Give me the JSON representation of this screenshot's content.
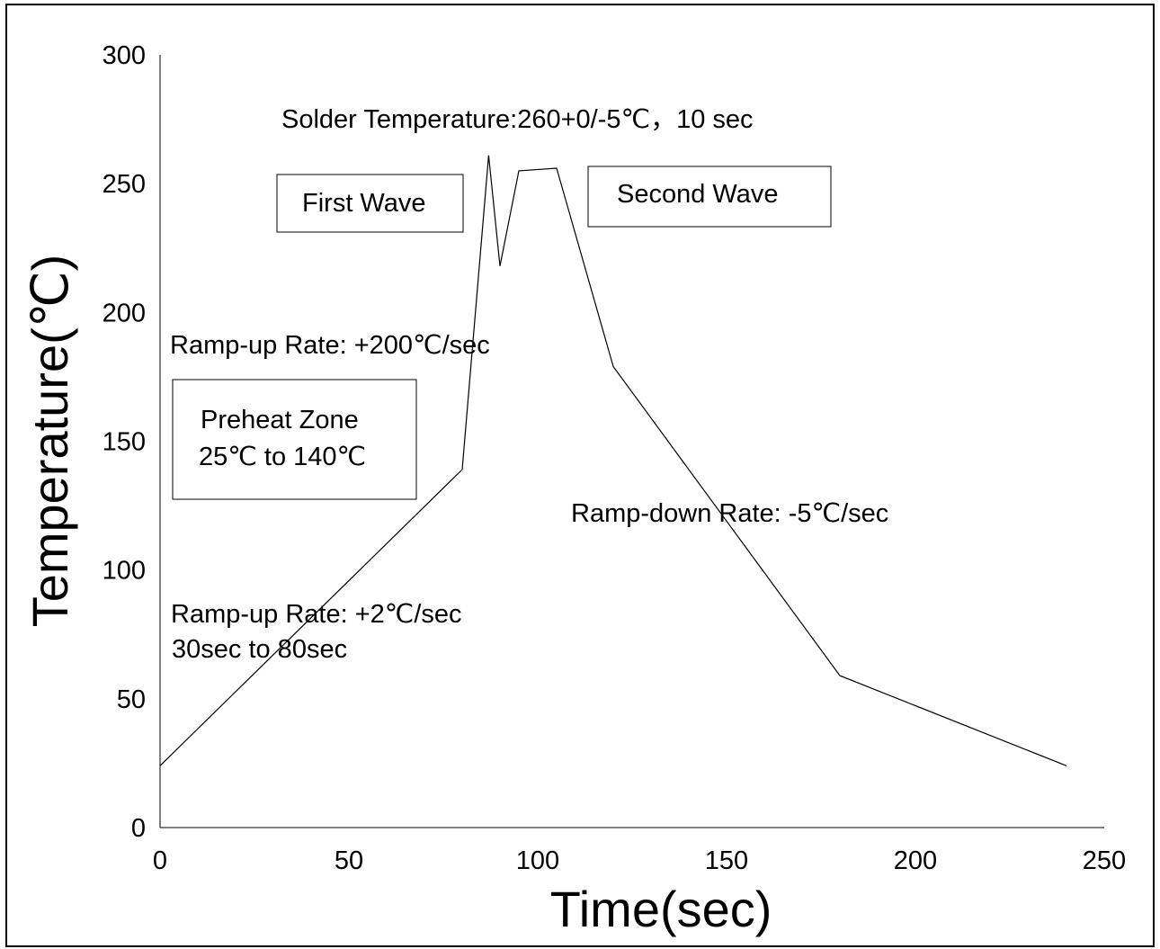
{
  "chart_data": {
    "type": "line",
    "xlabel": "Time(sec)",
    "ylabel": "Temperature(℃)",
    "xlim": [
      0,
      250
    ],
    "ylim": [
      0,
      300
    ],
    "x_ticks": [
      "0",
      "50",
      "100",
      "150",
      "200",
      "250"
    ],
    "y_ticks": [
      "0",
      "50",
      "100",
      "150",
      "200",
      "250",
      "300"
    ],
    "grid": false,
    "legend": "none",
    "series": [
      {
        "x": [
          0,
          80,
          87,
          90,
          95,
          105,
          120,
          180,
          240
        ],
        "y": [
          24,
          139,
          261,
          218,
          255,
          256,
          179,
          59,
          24
        ]
      }
    ],
    "annotations": {
      "solder_temp": "Solder Temperature:260+0/-5℃，10 sec",
      "first_wave": "First Wave",
      "second_wave": "Second Wave",
      "ramp_up_fast": "Ramp-up Rate: +200℃/sec",
      "preheat_line1": "Preheat Zone",
      "preheat_line2": "25℃  to 140℃",
      "ramp_down": "Ramp-down Rate: -5℃/sec",
      "ramp_up_slow_line1": "Ramp-up Rate: +2℃/sec",
      "ramp_up_slow_line2": "30sec to 80sec"
    }
  }
}
